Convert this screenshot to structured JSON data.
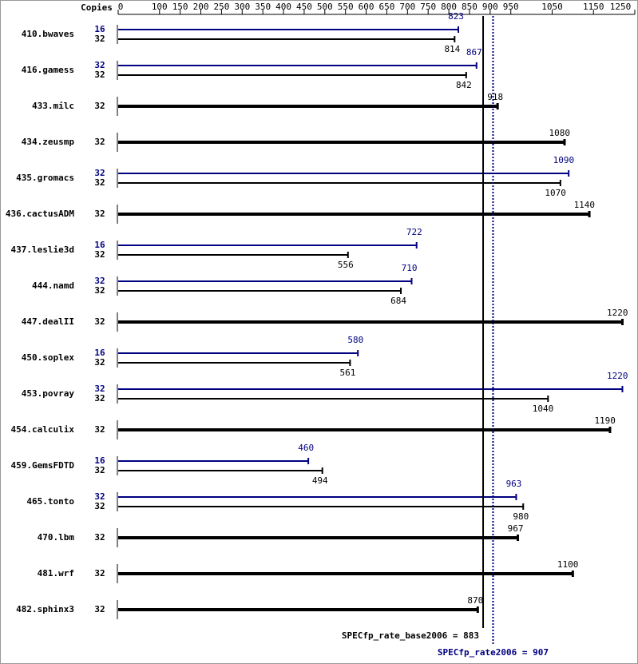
{
  "chart_data": {
    "type": "bar",
    "orientation": "horizontal",
    "x_label": "Copies",
    "categories": [
      "410.bwaves",
      "416.gamess",
      "433.milc",
      "434.zeusmp",
      "435.gromacs",
      "436.cactusADM",
      "437.leslie3d",
      "444.namd",
      "447.dealII",
      "450.soplex",
      "453.povray",
      "454.calculix",
      "459.GemsFDTD",
      "465.tonto",
      "470.lbm",
      "481.wrf",
      "482.sphinx3"
    ],
    "series": [
      {
        "color": "#000080",
        "copies": [
          "16",
          "32",
          null,
          null,
          "32",
          null,
          "16",
          "32",
          null,
          "16",
          "32",
          null,
          "16",
          "32",
          null,
          null,
          null
        ],
        "values": [
          823,
          867,
          null,
          null,
          1090,
          null,
          722,
          710,
          null,
          580,
          1220,
          null,
          460,
          963,
          null,
          null,
          null
        ]
      },
      {
        "color": "#000000",
        "copies": [
          "32",
          "32",
          "32",
          "32",
          "32",
          "32",
          "32",
          "32",
          "32",
          "32",
          "32",
          "32",
          "32",
          "32",
          "32",
          "32",
          "32"
        ],
        "values": [
          814,
          842,
          918,
          1080,
          1070,
          1140,
          556,
          684,
          1220,
          561,
          1040,
          1190,
          494,
          980,
          967,
          1100,
          870
        ]
      }
    ],
    "xlim": [
      0,
      1250
    ],
    "xticks": [
      0,
      100,
      150,
      200,
      250,
      300,
      350,
      400,
      450,
      500,
      550,
      600,
      650,
      700,
      750,
      800,
      850,
      900,
      950,
      1050,
      1150,
      1250
    ],
    "reference_lines": [
      {
        "value": 883,
        "label": "SPECfp_rate_base2006 = 883",
        "color": "#000000",
        "dashed": false
      },
      {
        "value": 907,
        "label": "SPECfp_rate2006 = 907",
        "color": "#000080",
        "dashed": true
      }
    ]
  }
}
